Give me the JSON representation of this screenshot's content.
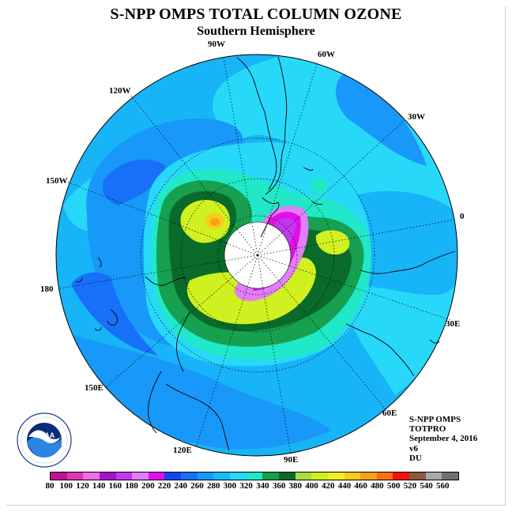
{
  "title": "S-NPP OMPS TOTAL COLUMN OZONE",
  "subtitle": "Southern Hemisphere",
  "longitude_labels": [
    "90W",
    "60W",
    "30W",
    "0",
    "30E",
    "60E",
    "90E",
    "120E",
    "150E",
    "180",
    "150W",
    "120W"
  ],
  "info": {
    "instrument": "S-NPP OMPS",
    "product": "TOTPRO",
    "date": "September 4, 2016",
    "version": "v6",
    "units": "DU"
  },
  "logo": {
    "name": "NOAA",
    "ring_text": "NATIONAL OCEANIC AND ATMOSPHERIC ADMINISTRATION · U.S. DEPARTMENT OF COMMERCE"
  },
  "colorbar": {
    "labels": [
      "80",
      "100",
      "120",
      "140",
      "160",
      "180",
      "200",
      "220",
      "240",
      "260",
      "280",
      "300",
      "320",
      "340",
      "360",
      "380",
      "400",
      "420",
      "440",
      "460",
      "480",
      "500",
      "520",
      "540",
      "560"
    ],
    "colors": [
      "#c0138f",
      "#e036b6",
      "#f06ce8",
      "#a810c8",
      "#c038f0",
      "#e27ef8",
      "#e010e8",
      "#1048f0",
      "#1870f8",
      "#1898f8",
      "#14bcf8",
      "#28d8f8",
      "#20e8c8",
      "#16a050",
      "#0a6a2a",
      "#a8e040",
      "#d0f020",
      "#f0f020",
      "#f8cc18",
      "#f8a018",
      "#f87010",
      "#f81010",
      "#8c5a40",
      "#a8a8a8",
      "#707070"
    ]
  },
  "colors": {
    "ocean_background": "#18b4f8",
    "cyan": "#28d8f8",
    "mid_blue": "#1898f8",
    "deep_blue": "#1870f8",
    "teal": "#20e8c8",
    "green": "#16a050",
    "dark_green": "#0a6a2a",
    "yellow_green": "#d0f020",
    "orange": "#f8a018",
    "magenta": "#e010e8",
    "violet": "#e27ef8",
    "no_data": "#ffffff",
    "coastline": "#000000"
  }
}
